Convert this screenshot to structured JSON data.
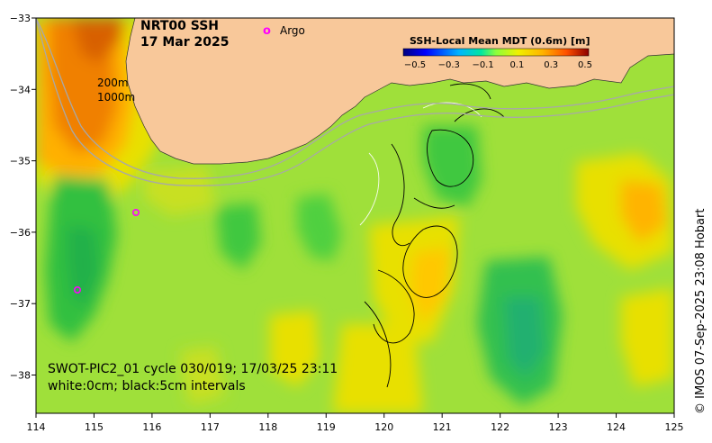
{
  "map": {
    "title_line1": "NRT00 SSH",
    "title_line2": "17 Mar 2025",
    "argo_label": "Argo",
    "argo_marker": "o",
    "depth_label_1": "200m",
    "depth_label_2": "1000m",
    "info_line1": "SWOT-PIC2_01 cycle 030/019; 17/03/25 23:11",
    "info_line2": "white:0cm; black:5cm intervals",
    "credit": "© IMOS 07-Sep-2025 23:08 Hobart",
    "x_ticks": [
      "114",
      "115",
      "116",
      "117",
      "118",
      "119",
      "120",
      "121",
      "122",
      "123",
      "124",
      "125"
    ],
    "y_ticks": [
      "−33",
      "−34",
      "−35",
      "−36",
      "−37",
      "−38"
    ],
    "colorbar": {
      "title": "SSH-Local Mean MDT (0.6m) [m]",
      "ticks": [
        "−0.5",
        "−0.3",
        "−0.1",
        "0.1",
        "0.3",
        "0.5"
      ]
    },
    "colors": {
      "land": "#f8c89a",
      "land_edge": "#333333",
      "base_sea": "#9fe03a",
      "isobath": "#a8a8a8",
      "argo": "#ff00ff"
    },
    "icons": [
      "argo-float-marker"
    ]
  }
}
